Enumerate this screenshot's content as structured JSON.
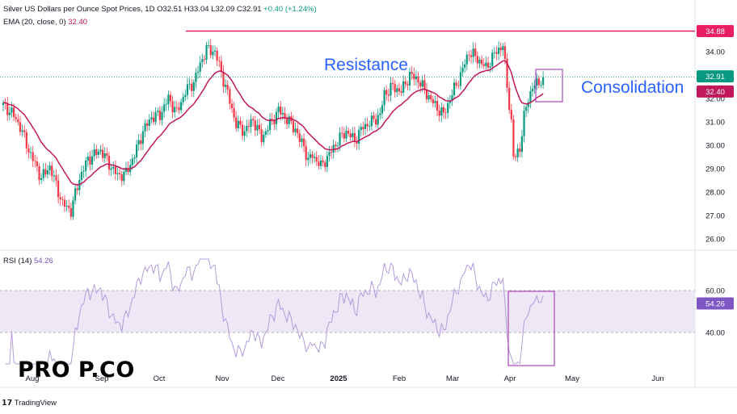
{
  "header": {
    "symbol": "Silver US Dollars per Ounce Spot Prices, 1D",
    "open": "O32.51",
    "high": "H33.04",
    "low": "L32.09",
    "close": "C32.91",
    "change": "+0.40 (+1.24%)",
    "ema_label": "EMA (20, close, 0)",
    "ema_value": "32.40",
    "rsi_label": "RSI (14)",
    "rsi_value": "54.26"
  },
  "logo": {
    "text": "PRO  P.CO"
  },
  "footer": {
    "brand": "TradingView"
  },
  "colors": {
    "up": "#089981",
    "down": "#F23645",
    "ema": "#C2185B",
    "resistance": "#E91E63",
    "annotation_text": "#2962FF",
    "rsi_line": "#B39DDB",
    "rsi_band": "#EDE7F6",
    "box": "#AB47BC"
  },
  "chart_data": [
    {
      "type": "candlestick",
      "series": [
        {
          "name": "Silver Spot",
          "values": []
        },
        {
          "name": "EMA (20, close, 0)",
          "values": []
        }
      ],
      "x_ticks": [
        "Aug",
        "Sep",
        "Oct",
        "Nov",
        "Dec",
        "2025",
        "Feb",
        "Mar",
        "Apr",
        "May",
        "Jun"
      ],
      "y_ticks": [
        "34.00",
        "33.00",
        "32.00",
        "31.00",
        "30.00",
        "29.00",
        "28.00",
        "27.00",
        "26.00"
      ],
      "ylim": [
        25.8,
        35.4
      ],
      "price_labels": {
        "resistance": "34.88",
        "last": "32.91",
        "ema": "32.40"
      },
      "resistance_level": 34.88,
      "annotations": {
        "resistance": "Resistance",
        "consolidation": "Consolidation"
      }
    },
    {
      "type": "line",
      "name": "RSI (14)",
      "y_ticks": [
        "60.00",
        "40.00"
      ],
      "band": [
        40,
        60
      ],
      "ylim": [
        20,
        80
      ],
      "last_label": "54.26"
    }
  ]
}
